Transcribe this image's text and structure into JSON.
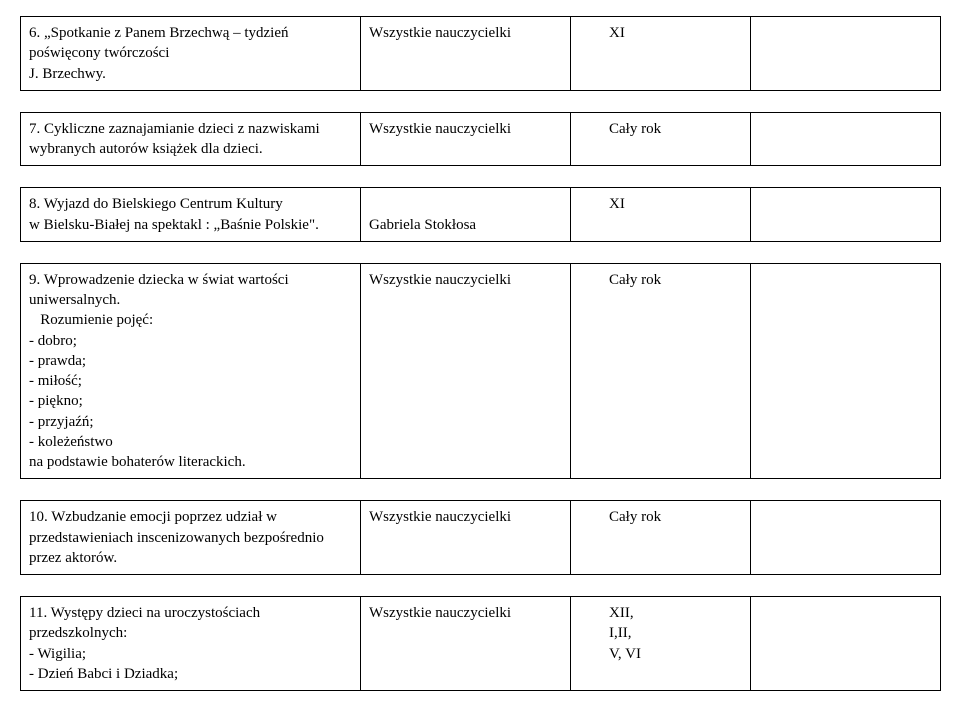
{
  "rows": [
    {
      "a": "6. „Spotkanie z Panem Brzechwą – tydzień poświęcony twórczości\nJ. Brzechwy.",
      "b": "Wszystkie nauczycielki",
      "c": "XI",
      "d": ""
    },
    {
      "a": "7. Cykliczne zaznajamianie dzieci z nazwiskami wybranych autorów książek dla dzieci.",
      "b": "Wszystkie nauczycielki",
      "c": "Cały rok",
      "d": ""
    },
    {
      "a": "8. Wyjazd do Bielskiego Centrum Kultury\nw Bielsku-Białej na spektakl : „Baśnie Polskie\".",
      "b": "Gabriela Stokłosa",
      "c": "XI",
      "d": ""
    },
    {
      "a": "9. Wprowadzenie dziecka w świat wartości uniwersalnych.\n   Rozumienie pojęć:\n- dobro;\n- prawda;\n- miłość;\n- piękno;\n- przyjaźń;\n- koleżeństwo\nna podstawie bohaterów literackich.",
      "b": "Wszystkie nauczycielki",
      "c": "Cały rok",
      "d": ""
    },
    {
      "a": "10. Wzbudzanie emocji poprzez udział w przedstawieniach inscenizowanych bezpośrednio przez aktorów.",
      "b": "Wszystkie nauczycielki",
      "c": "Cały rok",
      "d": ""
    },
    {
      "a": "11. Występy dzieci na uroczystościach przedszkolnych:\n- Wigilia;\n- Dzień Babci i Dziadka;",
      "b": "Wszystkie nauczycielki",
      "c": "XII,\nI,II,\nV, VI",
      "d": ""
    }
  ]
}
